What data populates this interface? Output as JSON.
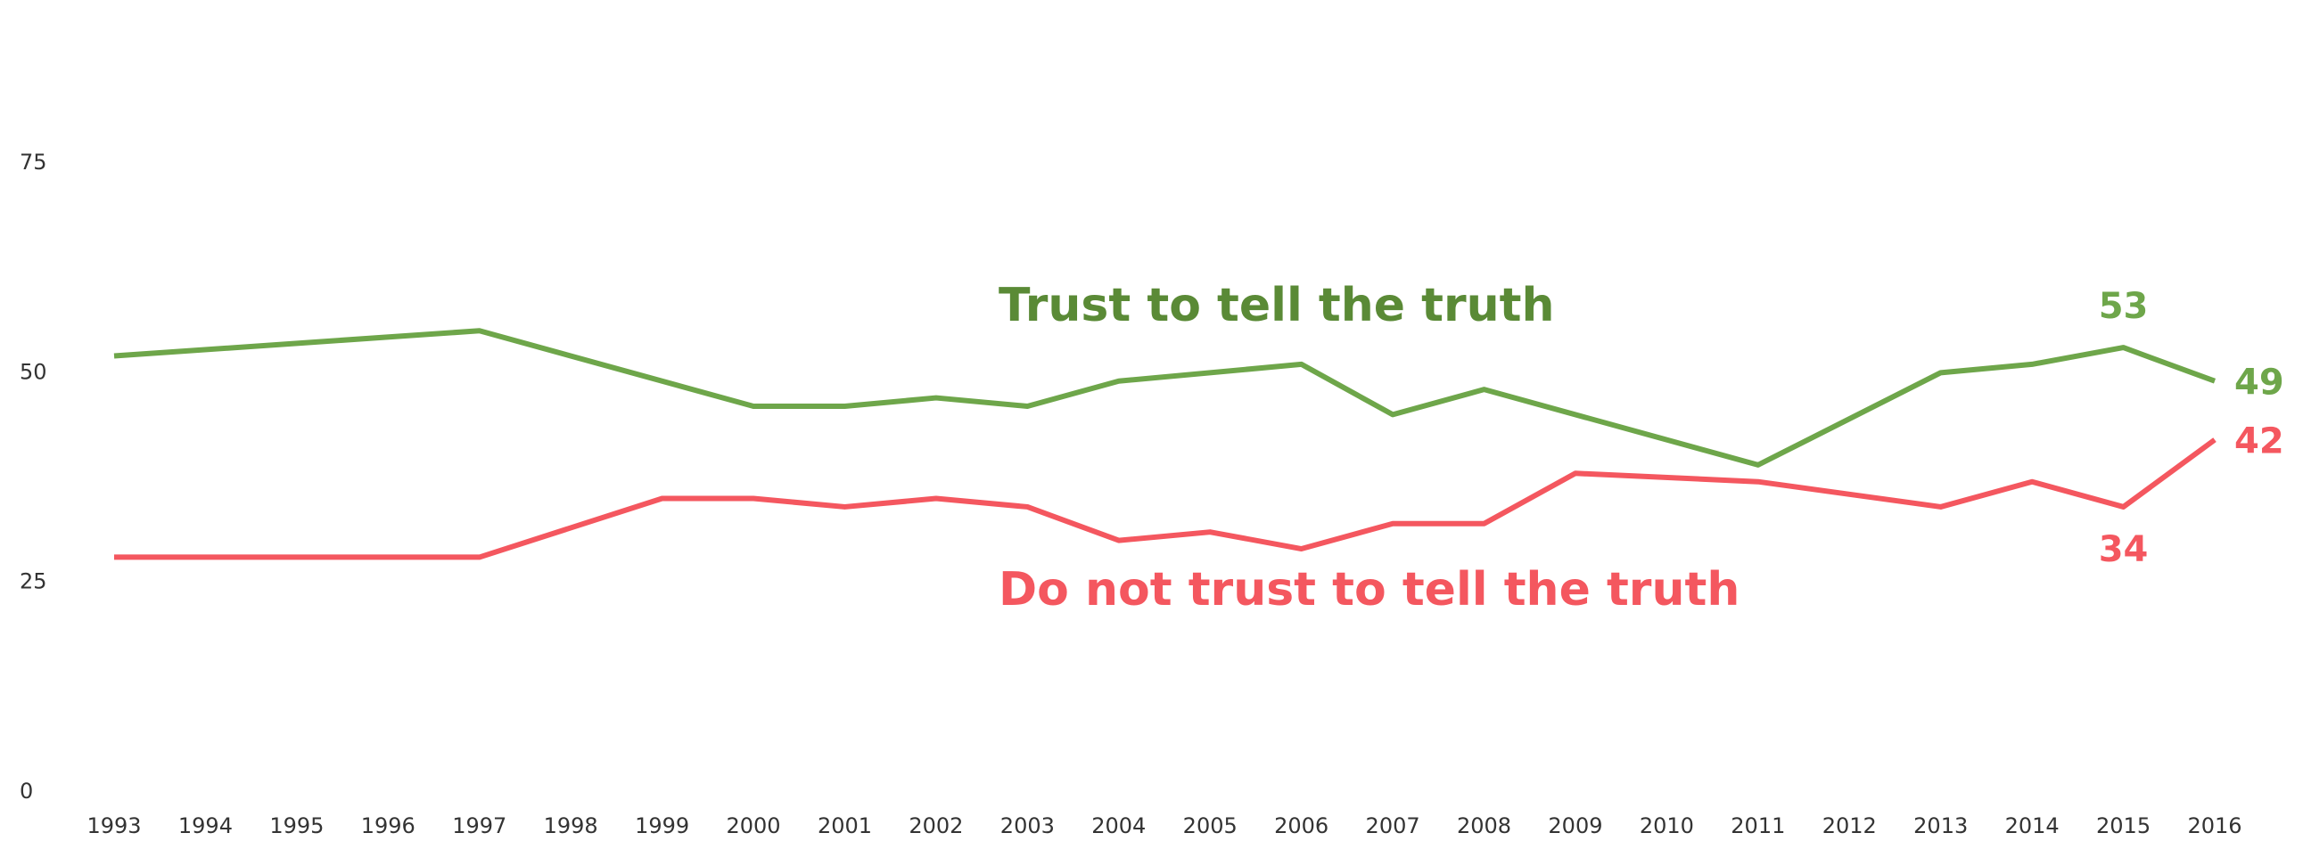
{
  "chart_data": {
    "type": "line",
    "xlim": [
      1993,
      2016
    ],
    "xticks": [
      1993,
      1994,
      1995,
      1996,
      1997,
      1998,
      1999,
      2000,
      2001,
      2002,
      2003,
      2004,
      2005,
      2006,
      2007,
      2008,
      2009,
      2010,
      2011,
      2012,
      2013,
      2014,
      2015,
      2016
    ],
    "ylim": [
      0,
      75
    ],
    "yticks": [
      0,
      25,
      50,
      75
    ],
    "grid": false,
    "series": [
      {
        "name": "Trust to tell the truth",
        "color": "#6ea64a",
        "name_color": "#5a8a36",
        "x": [
          1993,
          1997,
          2000,
          2001,
          2002,
          2003,
          2004,
          2006,
          2007,
          2008,
          2011,
          2013,
          2014,
          2015,
          2016
        ],
        "values": [
          52,
          55,
          46,
          46,
          47,
          46,
          49,
          51,
          45,
          48,
          39,
          50,
          51,
          53,
          49
        ],
        "value_labels": [
          null,
          null,
          null,
          null,
          null,
          null,
          null,
          null,
          null,
          null,
          null,
          null,
          null,
          "53",
          "49"
        ]
      },
      {
        "name": "Do not trust to tell the truth",
        "color": "#f4575f",
        "name_color": "#f4575f",
        "x": [
          1993,
          1997,
          1999,
          2000,
          2001,
          2002,
          2003,
          2004,
          2005,
          2006,
          2007,
          2008,
          2009,
          2011,
          2013,
          2014,
          2015,
          2016
        ],
        "values": [
          28,
          28,
          35,
          35,
          34,
          35,
          34,
          30,
          31,
          29,
          32,
          32,
          38,
          37,
          34,
          37,
          34,
          42
        ],
        "value_labels": [
          null,
          null,
          null,
          null,
          null,
          null,
          null,
          null,
          null,
          null,
          null,
          null,
          null,
          null,
          null,
          null,
          "34",
          "42"
        ]
      }
    ]
  }
}
